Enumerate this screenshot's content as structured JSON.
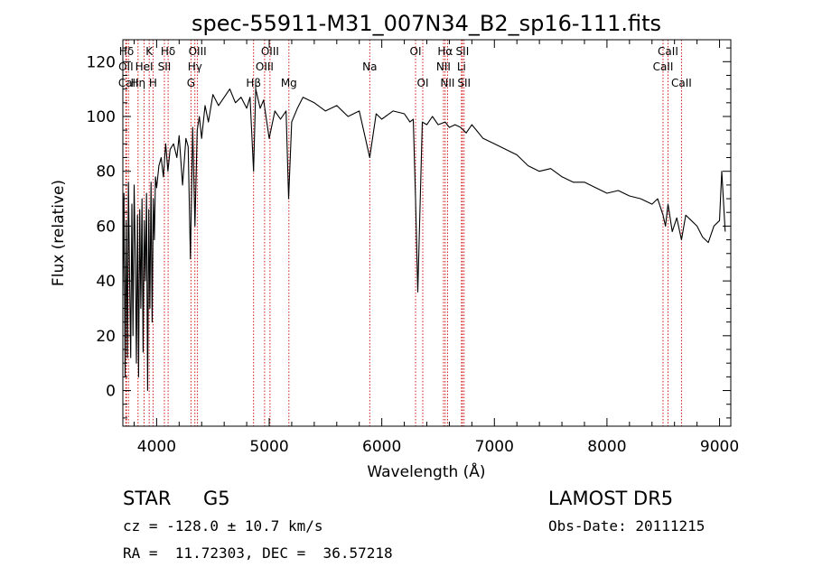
{
  "chart_data": {
    "type": "line",
    "title": "spec-55911-M31_007N34_B2_sp16-111.fits",
    "xlabel": "Wavelength (Å)",
    "ylabel": "Flux (relative)",
    "xlim": [
      3700,
      9100
    ],
    "ylim": [
      -13,
      128
    ],
    "xticks": [
      4000,
      5000,
      6000,
      7000,
      8000,
      9000
    ],
    "yticks": [
      0,
      20,
      40,
      60,
      80,
      100,
      120
    ],
    "line_color": "#000000",
    "marker_color": "#cc0000",
    "series": [
      {
        "x": [
          3700,
          3710,
          3720,
          3730,
          3740,
          3750,
          3760,
          3770,
          3780,
          3790,
          3800,
          3810,
          3820,
          3830,
          3840,
          3850,
          3860,
          3870,
          3880,
          3890,
          3900,
          3910,
          3920,
          3930,
          3940,
          3950,
          3960,
          3970,
          3980,
          3990,
          4000,
          4020,
          4040,
          4060,
          4080,
          4100,
          4120,
          4150,
          4180,
          4200,
          4230,
          4260,
          4280,
          4300,
          4320,
          4340,
          4360,
          4380,
          4400,
          4430,
          4460,
          4500,
          4550,
          4600,
          4650,
          4700,
          4750,
          4800,
          4830,
          4861,
          4880,
          4920,
          4950,
          5000,
          5050,
          5100,
          5150,
          5172,
          5200,
          5250,
          5300,
          5400,
          5500,
          5600,
          5700,
          5800,
          5893,
          5950,
          6000,
          6100,
          6200,
          6250,
          6280,
          6300,
          6320,
          6360,
          6400,
          6450,
          6500,
          6563,
          6600,
          6650,
          6700,
          6750,
          6800,
          6900,
          7000,
          7100,
          7200,
          7300,
          7400,
          7500,
          7600,
          7700,
          7800,
          7900,
          8000,
          8100,
          8200,
          8300,
          8400,
          8450,
          8498,
          8520,
          8542,
          8580,
          8620,
          8662,
          8700,
          8750,
          8800,
          8850,
          8900,
          8950,
          9000,
          9020,
          9050
        ],
        "y": [
          35,
          72,
          5,
          62,
          12,
          76,
          40,
          12,
          68,
          20,
          75,
          50,
          10,
          64,
          5,
          66,
          30,
          70,
          14,
          62,
          40,
          72,
          0,
          66,
          30,
          76,
          25,
          70,
          55,
          78,
          74,
          82,
          85,
          78,
          90,
          80,
          88,
          90,
          85,
          93,
          75,
          92,
          89,
          48,
          96,
          60,
          95,
          100,
          92,
          104,
          98,
          108,
          104,
          107,
          110,
          105,
          107,
          103,
          107,
          80,
          110,
          103,
          106,
          92,
          102,
          99,
          102,
          70,
          98,
          103,
          107,
          105,
          102,
          104,
          100,
          102,
          85,
          101,
          99,
          102,
          101,
          98,
          99,
          70,
          36,
          98,
          97,
          100,
          97,
          98,
          96,
          97,
          96,
          94,
          97,
          92,
          90,
          88,
          86,
          82,
          80,
          81,
          78,
          76,
          76,
          74,
          72,
          73,
          71,
          70,
          68,
          70,
          64,
          60,
          68,
          58,
          63,
          55,
          64,
          62,
          60,
          56,
          54,
          60,
          62,
          80,
          58
        ]
      }
    ],
    "lines": [
      {
        "label": "Hδ",
        "x": 3732,
        "row": 0
      },
      {
        "label": "OII",
        "x": 3727,
        "row": 1
      },
      {
        "label": "CaII",
        "x": 3750,
        "row": 2
      },
      {
        "label": "K",
        "x": 3934,
        "row": 0
      },
      {
        "label": "HeI",
        "x": 3889,
        "row": 1
      },
      {
        "label": "Hη",
        "x": 3835,
        "row": 2
      },
      {
        "label": "SII",
        "x": 4069,
        "row": 1
      },
      {
        "label": "H",
        "x": 3968,
        "row": 2
      },
      {
        "label": "Hδ",
        "x": 4102,
        "row": 0
      },
      {
        "label": "OIII",
        "x": 4363,
        "row": 0
      },
      {
        "label": "Hγ",
        "x": 4340,
        "row": 1
      },
      {
        "label": "G",
        "x": 4305,
        "row": 2
      },
      {
        "label": "OIII",
        "x": 5007,
        "row": 0
      },
      {
        "label": "OIII",
        "x": 4959,
        "row": 1
      },
      {
        "label": "Hβ",
        "x": 4861,
        "row": 2
      },
      {
        "label": "Mg",
        "x": 5175,
        "row": 2
      },
      {
        "label": "Na",
        "x": 5893,
        "row": 1
      },
      {
        "label": "OI",
        "x": 6300,
        "row": 0
      },
      {
        "label": "OI",
        "x": 6364,
        "row": 2
      },
      {
        "label": "Hα",
        "x": 6563,
        "row": 0
      },
      {
        "label": "SII",
        "x": 6716,
        "row": 0
      },
      {
        "label": "NII",
        "x": 6548,
        "row": 1
      },
      {
        "label": "Li",
        "x": 6708,
        "row": 1
      },
      {
        "label": "NII",
        "x": 6584,
        "row": 2
      },
      {
        "label": "SII",
        "x": 6731,
        "row": 2
      },
      {
        "label": "CaII",
        "x": 8542,
        "row": 0
      },
      {
        "label": "CaII",
        "x": 8498,
        "row": 1
      },
      {
        "label": "CaII",
        "x": 8662,
        "row": 2
      }
    ]
  },
  "info": {
    "object_class": "STAR",
    "subclass": "G5",
    "survey": "LAMOST DR5",
    "redshift": "cz = -128.0 ± 10.7 km/s",
    "obs_date": "Obs-Date: 20111215",
    "coords": "RA =  11.72303, DEC =  36.57218"
  }
}
